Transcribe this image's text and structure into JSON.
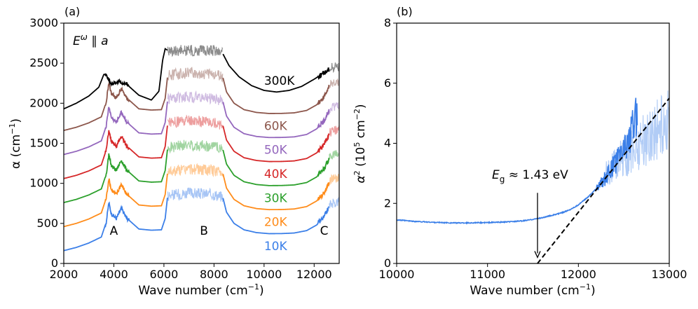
{
  "chart_data": [
    {
      "panel": "(a)",
      "type": "line",
      "annotation": "E^ω ∥ a",
      "xlabel": "Wave number (cm⁻¹)",
      "ylabel": "α (cm⁻¹)",
      "xlim": [
        2000,
        13000
      ],
      "ylim": [
        0,
        3000
      ],
      "xticks": [
        2000,
        4000,
        6000,
        8000,
        10000,
        12000
      ],
      "yticks": [
        0,
        500,
        1000,
        1500,
        2000,
        2500,
        3000
      ],
      "region_labels": [
        {
          "text": "A",
          "x": 4000
        },
        {
          "text": "B",
          "x": 7600
        },
        {
          "text": "C",
          "x": 12400
        }
      ],
      "series": [
        {
          "name": "10K",
          "color": "#3b7fe8",
          "offset": 0,
          "x": [
            2000,
            2500,
            3000,
            3500,
            3700,
            3800,
            3900,
            4100,
            4300,
            4500,
            5000,
            5500,
            5900,
            6050,
            6150,
            7000,
            8000,
            8350,
            8500,
            8800,
            9200,
            9700,
            10200,
            10700,
            11200,
            11700,
            12100,
            12400,
            12650,
            13000
          ],
          "y": [
            160,
            200,
            255,
            330,
            520,
            760,
            620,
            560,
            690,
            570,
            430,
            415,
            420,
            560,
            850,
            880,
            860,
            830,
            640,
            500,
            420,
            385,
            372,
            373,
            380,
            410,
            480,
            580,
            740,
            780
          ]
        },
        {
          "name": "20K",
          "color": "#ff8c1a",
          "offset": 300,
          "x": [
            2000,
            2500,
            3000,
            3500,
            3700,
            3800,
            3900,
            4100,
            4300,
            4500,
            5000,
            5500,
            5900,
            6050,
            6150,
            7000,
            8000,
            8350,
            8500,
            8800,
            9200,
            9700,
            10200,
            10700,
            11200,
            11700,
            12100,
            12400,
            12650,
            13000
          ],
          "y": [
            160,
            200,
            255,
            330,
            520,
            760,
            620,
            560,
            690,
            570,
            430,
            415,
            420,
            560,
            850,
            880,
            860,
            830,
            640,
            500,
            420,
            385,
            372,
            373,
            380,
            410,
            480,
            580,
            740,
            780
          ]
        },
        {
          "name": "30K",
          "color": "#2ca02c",
          "offset": 600,
          "x": [
            2000,
            2500,
            3000,
            3500,
            3700,
            3800,
            3900,
            4100,
            4300,
            4500,
            5000,
            5500,
            5900,
            6050,
            6150,
            7000,
            8000,
            8350,
            8500,
            8800,
            9200,
            9700,
            10200,
            10700,
            11200,
            11700,
            12100,
            12400,
            12650,
            13000
          ],
          "y": [
            160,
            200,
            255,
            330,
            520,
            760,
            620,
            560,
            690,
            570,
            430,
            415,
            420,
            560,
            850,
            880,
            860,
            830,
            640,
            500,
            420,
            385,
            372,
            373,
            380,
            410,
            480,
            580,
            740,
            780
          ]
        },
        {
          "name": "40K",
          "color": "#d62728",
          "offset": 900,
          "x": [
            2000,
            2500,
            3000,
            3500,
            3700,
            3800,
            3900,
            4100,
            4300,
            4500,
            5000,
            5500,
            5900,
            6050,
            6150,
            7000,
            8000,
            8350,
            8500,
            8800,
            9200,
            9700,
            10200,
            10700,
            11200,
            11700,
            12100,
            12400,
            12650,
            13000
          ],
          "y": [
            160,
            200,
            255,
            330,
            520,
            760,
            620,
            560,
            690,
            570,
            430,
            415,
            420,
            560,
            850,
            880,
            860,
            830,
            640,
            500,
            420,
            385,
            372,
            373,
            380,
            410,
            480,
            580,
            740,
            780
          ]
        },
        {
          "name": "50K",
          "color": "#9467bd",
          "offset": 1200,
          "x": [
            2000,
            2500,
            3000,
            3500,
            3700,
            3800,
            3900,
            4100,
            4300,
            4500,
            5000,
            5500,
            5900,
            6050,
            6150,
            7000,
            8000,
            8350,
            8500,
            8800,
            9200,
            9700,
            10200,
            10700,
            11200,
            11700,
            12100,
            12400,
            12650,
            13000
          ],
          "y": [
            160,
            200,
            255,
            330,
            520,
            760,
            620,
            560,
            690,
            570,
            430,
            415,
            420,
            560,
            850,
            880,
            860,
            830,
            640,
            500,
            420,
            385,
            372,
            373,
            380,
            410,
            480,
            580,
            740,
            780
          ]
        },
        {
          "name": "60K",
          "color": "#8c564b",
          "offset": 1500,
          "x": [
            2000,
            2500,
            3000,
            3500,
            3700,
            3800,
            3900,
            4100,
            4300,
            4500,
            5000,
            5500,
            5900,
            6050,
            6150,
            7000,
            8000,
            8350,
            8500,
            8800,
            9200,
            9700,
            10200,
            10700,
            11200,
            11700,
            12100,
            12400,
            12650,
            13000
          ],
          "y": [
            160,
            200,
            255,
            330,
            520,
            760,
            620,
            560,
            690,
            570,
            430,
            415,
            420,
            560,
            850,
            880,
            860,
            830,
            640,
            500,
            420,
            385,
            372,
            373,
            380,
            410,
            480,
            580,
            740,
            780
          ]
        },
        {
          "name": "300K",
          "color": "#000000",
          "offset": 0,
          "x": [
            2000,
            2500,
            3000,
            3400,
            3600,
            3700,
            3900,
            4200,
            4500,
            5000,
            5500,
            5800,
            5950,
            6050,
            6150,
            7000,
            8000,
            8350,
            8600,
            9000,
            9500,
            10000,
            10500,
            11000,
            11500,
            12000,
            12400,
            12700,
            13000
          ],
          "y": [
            1930,
            2000,
            2090,
            2200,
            2360,
            2350,
            2240,
            2270,
            2240,
            2100,
            2040,
            2150,
            2540,
            2680,
            2660,
            2660,
            2660,
            2620,
            2470,
            2330,
            2220,
            2160,
            2140,
            2160,
            2210,
            2300,
            2380,
            2450,
            2460
          ]
        }
      ]
    },
    {
      "panel": "(b)",
      "type": "line",
      "xlabel": "Wave number (cm⁻¹)",
      "ylabel": "α² (10⁵ cm⁻²)",
      "xlim": [
        10000,
        13000
      ],
      "ylim": [
        0,
        8
      ],
      "xticks": [
        10000,
        11000,
        12000,
        13000
      ],
      "yticks": [
        0,
        2,
        4,
        6,
        8
      ],
      "series": [
        {
          "name": "10K",
          "color": "#3b7fe8",
          "x": [
            10000,
            10200,
            10400,
            10600,
            10800,
            11000,
            11200,
            11400,
            11600,
            11800,
            11900,
            12000,
            12100,
            12200,
            12300,
            12400,
            12500,
            12600,
            12650
          ],
          "y": [
            1.45,
            1.4,
            1.37,
            1.35,
            1.35,
            1.36,
            1.38,
            1.42,
            1.52,
            1.67,
            1.78,
            1.95,
            2.2,
            2.5,
            2.85,
            3.3,
            3.8,
            4.5,
            5.0
          ]
        }
      ],
      "fit_line": {
        "x": [
          11550,
          13000
        ],
        "y": [
          0,
          5.5
        ]
      },
      "annotation": {
        "label": "E_g ≈ 1.43 eV",
        "arrow_x": 11550,
        "arrow_from_y": 2.35,
        "arrow_to_y": 0.2
      }
    }
  ],
  "labels": {
    "panel_a": "(a)",
    "panel_b": "(b)",
    "annot_a_E": "E",
    "annot_a_w": "ω",
    "annot_a_rest": " ∥ a",
    "eg_E": "E",
    "eg_sub": "g",
    "eg_rest": " ≈ 1.43 eV",
    "xlabel_a_main": "Wave number (cm",
    "xlabel_a_sup": "−1",
    "xlabel_a_close": ")",
    "ylabel_a_main": "α (cm",
    "ylabel_a_sup": "−1",
    "ylabel_a_close": ")",
    "xlabel_b_main": "Wave number (cm",
    "xlabel_b_sup": "−1",
    "xlabel_b_close": ")",
    "ylabel_b_alpha": "α",
    "ylabel_b_sq": "2",
    "ylabel_b_mid": " (10",
    "ylabel_b_five": "5",
    "ylabel_b_unit": " cm",
    "ylabel_b_minus2": "−2",
    "ylabel_b_close": ")"
  }
}
